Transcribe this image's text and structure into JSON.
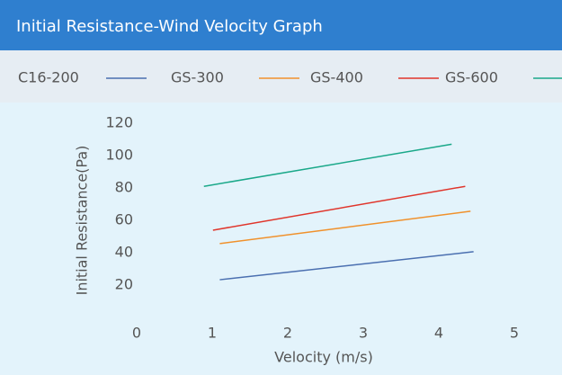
{
  "chart_data": {
    "type": "line",
    "title": "Initial Resistance-Wind Velocity Graph",
    "x_label": "Velocity (m/s)",
    "y_label": "Initial Resistance(Pa)",
    "xlim": [
      0,
      5.5
    ],
    "xticks": [
      0,
      1,
      2,
      3,
      4,
      5
    ],
    "ylim": [
      0,
      120
    ],
    "yticks": [
      20,
      40,
      60,
      80,
      100,
      120
    ],
    "series": [
      {
        "name": "C16-200",
        "color": "#4a6fb0",
        "x": [
          1.1,
          4.46
        ],
        "values": [
          23.3,
          40.6
        ]
      },
      {
        "name": "GS-300",
        "color": "#f0912c",
        "x": [
          1.1,
          4.42
        ],
        "values": [
          45.6,
          65.6
        ]
      },
      {
        "name": "GS-400",
        "color": "#e0352b",
        "x": [
          1.01,
          4.35
        ],
        "values": [
          53.9,
          81
        ]
      },
      {
        "name": "GS-600",
        "color": "#1aa889",
        "x": [
          0.89,
          4.17
        ],
        "values": [
          81,
          107
        ]
      }
    ]
  }
}
